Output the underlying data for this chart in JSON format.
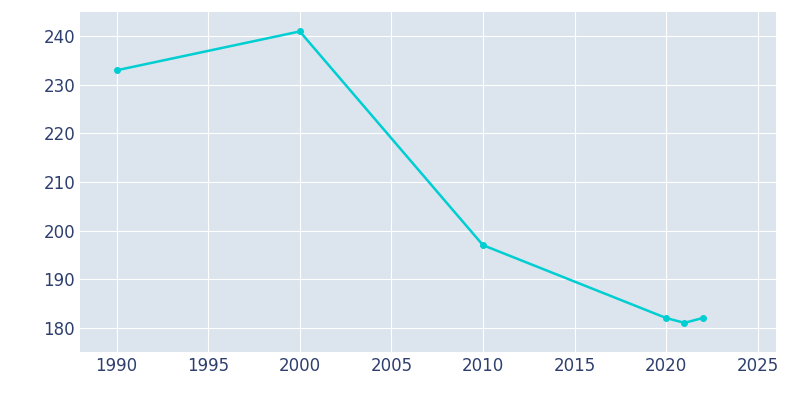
{
  "years": [
    1990,
    2000,
    2010,
    2020,
    2021,
    2022
  ],
  "population": [
    233,
    241,
    197,
    182,
    181,
    182
  ],
  "line_color": "#00CED1",
  "marker_color": "#00CED1",
  "plot_background_color": "#DCE4EE",
  "figure_background_color": "#ffffff",
  "grid_color": "#ffffff",
  "tick_color": "#2e3f6e",
  "xlim": [
    1988,
    2026
  ],
  "ylim": [
    175,
    245
  ],
  "yticks": [
    180,
    190,
    200,
    210,
    220,
    230,
    240
  ],
  "xticks": [
    1990,
    1995,
    2000,
    2005,
    2010,
    2015,
    2020,
    2025
  ],
  "marker_size": 4,
  "line_width": 1.8,
  "tick_fontsize": 12
}
